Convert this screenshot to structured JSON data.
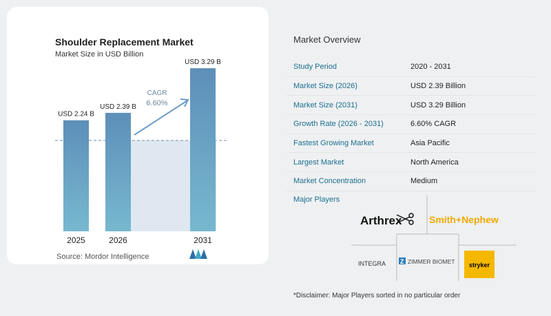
{
  "chart_data": {
    "type": "bar",
    "title": "Shoulder Replacement Market",
    "subtitle": "Market Size in USD Billion",
    "categories": [
      "2025",
      "2026",
      "2031"
    ],
    "values": [
      2.24,
      2.39,
      3.29
    ],
    "value_labels": [
      "USD 2.24 B",
      "USD 2.39 B",
      "USD 3.29 B"
    ],
    "ylim": [
      0,
      3.5
    ],
    "cagr_label": "CAGR",
    "cagr_value": "6.60%",
    "bar_colors": [
      "#5a8fb8",
      "#5a8fb8",
      "#5e9ec7"
    ]
  },
  "source": "Source:  Mordor Intelligence",
  "overview": {
    "title": "Market Overview",
    "rows": [
      {
        "key": "Study Period",
        "value": "2020 - 2031"
      },
      {
        "key": "Market Size (2026)",
        "value": "USD 2.39 Billion"
      },
      {
        "key": "Market Size (2031)",
        "value": "USD 3.29 Billion"
      },
      {
        "key": "Growth Rate (2026 - 2031)",
        "value": "6.60% CAGR"
      },
      {
        "key": "Fastest Growing Market",
        "value": "Asia Pacific"
      },
      {
        "key": "Largest Market",
        "value": "North America"
      },
      {
        "key": "Market Concentration",
        "value": "Medium"
      }
    ],
    "players_label": "Major Players",
    "players": [
      "Arthrex",
      "Smith+Nephew",
      "INTEGRA",
      "ZIMMER BIOMET",
      "stryker"
    ],
    "disclaimer": "*Disclaimer: Major Players sorted in no particular order"
  }
}
